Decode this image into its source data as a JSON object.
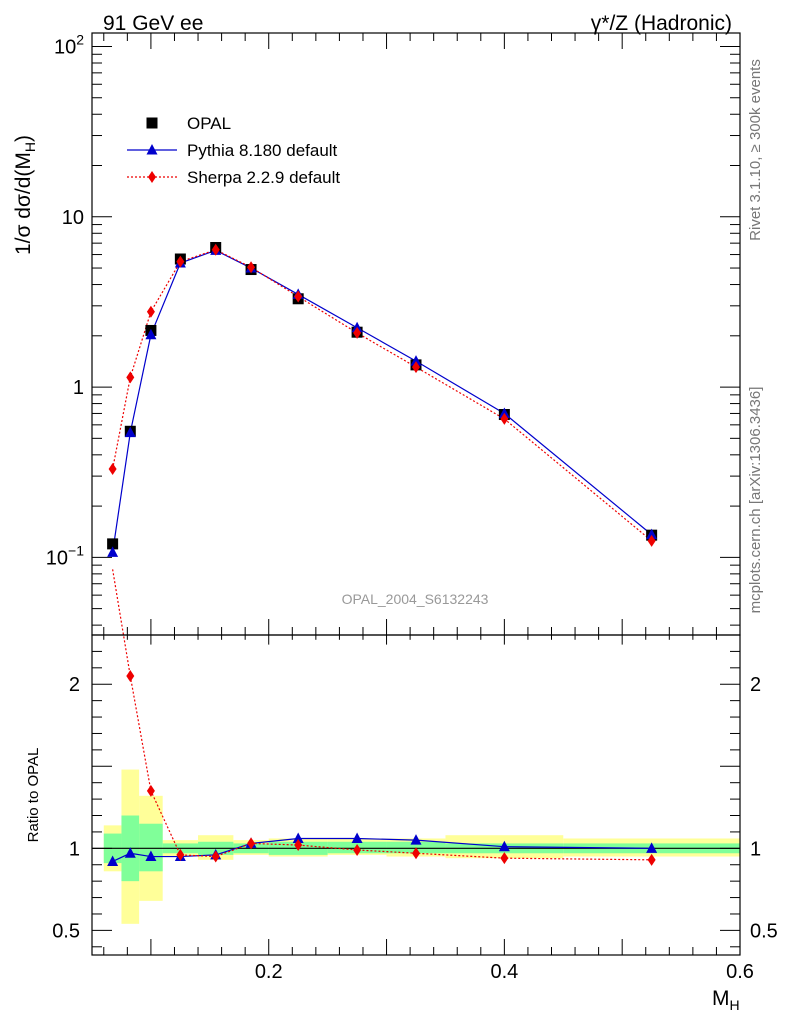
{
  "header": {
    "left": "91 GeV ee",
    "right": "γ*/Z (Hadronic)"
  },
  "side_labels": {
    "top": "Rivet 3.1.10, ≥ 300k events",
    "bottom": "mcplots.cern.ch [arXiv:1306.3436]"
  },
  "watermark": "OPAL_2004_S6132243",
  "chart_data": {
    "type": "line",
    "xlabel": "M",
    "xlabel_sub": "H",
    "ylabel_main": "1/σ dσ/d(M",
    "ylabel_sub": "H",
    "ylabel_end": ")",
    "ratio_ylabel": "Ratio to OPAL",
    "xlim": [
      0.05,
      0.6
    ],
    "ylim": [
      0.035,
      120
    ],
    "yscale": "log",
    "ratio_ylim": [
      0.35,
      2.3
    ],
    "x_ticks": [
      "0.2",
      "0.4",
      "0.6"
    ],
    "y_ticks": [
      {
        "base": "10",
        "exp": "−1"
      },
      {
        "base": "1",
        "exp": ""
      },
      {
        "base": "10",
        "exp": ""
      },
      {
        "base": "10",
        "exp": "2"
      }
    ],
    "ratio_ticks": [
      "0.5",
      "1",
      "2"
    ],
    "bins": [
      0.06,
      0.075,
      0.09,
      0.11,
      0.14,
      0.17,
      0.2,
      0.25,
      0.3,
      0.35,
      0.45,
      0.6
    ],
    "x": [
      0.0675,
      0.0825,
      0.1,
      0.125,
      0.155,
      0.185,
      0.225,
      0.275,
      0.325,
      0.4,
      0.525
    ],
    "legend_position": "top-left",
    "series": [
      {
        "name": "OPAL",
        "color": "#000000",
        "marker": "square",
        "values": [
          0.12,
          0.55,
          2.15,
          5.65,
          6.6,
          4.9,
          3.3,
          2.1,
          1.35,
          0.69,
          0.135
        ]
      },
      {
        "name": "Pythia 8.180 default",
        "color": "#0000cc",
        "marker": "triangle",
        "values": [
          0.107,
          0.54,
          2.03,
          5.35,
          6.35,
          5.0,
          3.5,
          2.23,
          1.42,
          0.7,
          0.136
        ]
      },
      {
        "name": "Sherpa 2.2.9 default",
        "color": "#ee0000",
        "marker": "diamond",
        "values": [
          0.33,
          1.14,
          2.77,
          5.45,
          6.4,
          5.05,
          3.4,
          2.08,
          1.31,
          0.65,
          0.125
        ]
      }
    ],
    "ratio": {
      "Pythia 8.180 default": [
        0.92,
        0.97,
        0.95,
        0.95,
        0.96,
        1.03,
        1.06,
        1.06,
        1.05,
        1.01,
        1.0
      ],
      "Sherpa 2.2.9 default": [
        2.7,
        2.05,
        1.35,
        0.96,
        0.95,
        1.03,
        1.02,
        0.99,
        0.97,
        0.94,
        0.93
      ],
      "band_stat": [
        [
          0.91,
          1.09
        ],
        [
          0.8,
          1.2
        ],
        [
          0.86,
          1.15
        ],
        [
          0.97,
          1.03
        ],
        [
          0.96,
          1.04
        ],
        [
          0.97,
          1.03
        ],
        [
          0.96,
          1.04
        ],
        [
          0.97,
          1.04
        ],
        [
          0.97,
          1.04
        ],
        [
          0.97,
          1.03
        ],
        [
          0.97,
          1.03
        ]
      ],
      "band_total": [
        [
          0.86,
          1.14
        ],
        [
          0.54,
          1.48
        ],
        [
          0.68,
          1.32
        ],
        [
          0.95,
          1.05
        ],
        [
          0.93,
          1.08
        ],
        [
          0.96,
          1.05
        ],
        [
          0.95,
          1.06
        ],
        [
          0.96,
          1.06
        ],
        [
          0.95,
          1.06
        ],
        [
          0.94,
          1.08
        ],
        [
          0.95,
          1.06
        ]
      ]
    },
    "colors": {
      "band_stat": "#80ff99",
      "band_total": "#ffff99"
    }
  }
}
